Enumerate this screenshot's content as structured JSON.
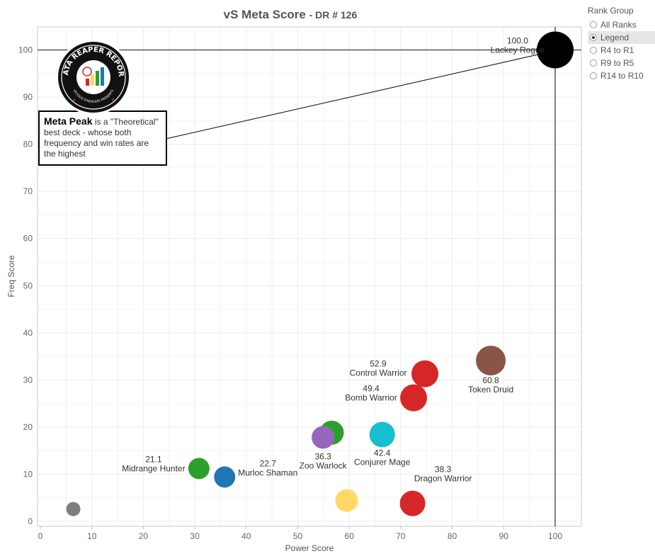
{
  "title": "vS Meta Score",
  "subtitle": "- DR # 126",
  "legend": {
    "title": "Rank Group",
    "options": [
      "All Ranks",
      "Legend",
      "R4 to R1",
      "R9 to R5",
      "R14 to R10"
    ],
    "selected": "Legend"
  },
  "annotation": {
    "bold": "Meta Peak",
    "text": " is a \"Theoretical\" best deck - whose both frequency and win rates are the highest"
  },
  "logo": {
    "main_text": "DATA REAPER REPORT",
    "sub_text": "VICIOUS SYNDICATE PRESENTS"
  },
  "colors": {
    "black": "#000000",
    "brown": "#8a5448",
    "red": "#d62728",
    "green": "#2ca02c",
    "purple": "#9467bd",
    "cyan": "#17becf",
    "blue": "#1f77b4",
    "yellow": "#ffd966",
    "gray": "#7f7f7f"
  },
  "chart_data": {
    "type": "scatter",
    "xlabel": "Power Score",
    "ylabel": "Freq Score",
    "xlim": [
      0,
      105
    ],
    "ylim": [
      -1,
      105
    ],
    "xticks": [
      0,
      10,
      20,
      30,
      40,
      50,
      60,
      70,
      80,
      90,
      100
    ],
    "yticks": [
      0,
      10,
      20,
      30,
      40,
      50,
      60,
      70,
      80,
      90,
      100
    ],
    "grid": true,
    "reference_lines": {
      "x": 100,
      "y": 100
    },
    "points": [
      {
        "name": "Lackey Rogue",
        "score": "100.0",
        "x": 100,
        "y": 100,
        "color": "#000000",
        "size": 26
      },
      {
        "name": "Token Druid",
        "score": "60.8",
        "x": 87.5,
        "y": 34.1,
        "color": "#8a5448",
        "size": 21
      },
      {
        "name": "Control Warrior",
        "score": "52.9",
        "x": 74.7,
        "y": 31.3,
        "color": "#d62728",
        "size": 19
      },
      {
        "name": "Bomb Warrior",
        "score": "49.4",
        "x": 72.5,
        "y": 26.2,
        "color": "#d62728",
        "size": 19
      },
      {
        "name": "Conjurer Mage",
        "score": "42.4",
        "x": 66.4,
        "y": 18.4,
        "color": "#17becf",
        "size": 18
      },
      {
        "name": "",
        "score": "",
        "x": 56.6,
        "y": 18.8,
        "color": "#2ca02c",
        "size": 17
      },
      {
        "name": "Zoo Warlock",
        "score": "36.3",
        "x": 54.9,
        "y": 17.8,
        "color": "#9467bd",
        "size": 16
      },
      {
        "name": "Dragon Warrior",
        "score": "38.3",
        "x": 72.3,
        "y": 3.8,
        "color": "#d62728",
        "size": 18
      },
      {
        "name": "",
        "score": "",
        "x": 59.5,
        "y": 4.4,
        "color": "#ffd966",
        "size": 16
      },
      {
        "name": "Midrange Hunter",
        "score": "21.1",
        "x": 30.8,
        "y": 11.2,
        "color": "#2ca02c",
        "size": 15
      },
      {
        "name": "Murloc Shaman",
        "score": "22.7",
        "x": 35.8,
        "y": 9.4,
        "color": "#1f77b4",
        "size": 15
      },
      {
        "name": "",
        "score": "",
        "x": 6.4,
        "y": 2.6,
        "color": "#7f7f7f",
        "size": 10
      }
    ]
  }
}
